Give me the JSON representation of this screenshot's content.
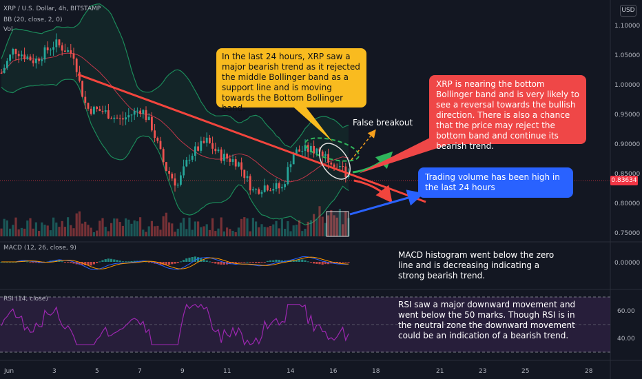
{
  "header": {
    "symbol": "XRP / U.S. Dollar, 4h, BITSTAMP",
    "bb": "BB (20, close, 2, 0)",
    "vol": "Vol",
    "currency": "USD"
  },
  "price_axis": {
    "ticks": [
      "1.10000",
      "1.05000",
      "1.00000",
      "0.95000",
      "0.90000",
      "0.85000",
      "0.80000",
      "0.75000"
    ],
    "current_price": "0.83634"
  },
  "macd": {
    "label": "MACD (12, 26, close, 9)",
    "tick": "0.00000"
  },
  "rsi": {
    "label": "RSI (14, close)",
    "ticks": [
      "60.00",
      "40.00"
    ]
  },
  "time_axis": {
    "labels": [
      "Jun",
      "3",
      "5",
      "7",
      "9",
      "11",
      "14",
      "16",
      "18",
      "21",
      "23",
      "25",
      "28"
    ]
  },
  "annotations": {
    "yellow": "In the last 24 hours, XRP saw a major bearish trend as it rejected the middle Bollinger band as a support line and is moving towards the Bottom Bollinger band.",
    "red": "XRP is nearing the bottom Bollinger band and is very likely to see a reversal towards the bullish direction. There is also a chance that the price may reject the bottom band and continue its bearish trend.",
    "false_breakout": "False breakout",
    "blue": "Trading volume has been high in the last 24 hours",
    "macd_note": "MACD histogram went below the zero line and is decreasing indicating a strong bearish trend.",
    "rsi_note": "RSI saw a major downward movement and went below the 50 marks. Though RSI is in the neutral zone the downward movement could be an indication of a bearish trend."
  },
  "colors": {
    "background": "#131722",
    "up": "#26a69a",
    "down": "#ef5350",
    "trendline": "#f2453d",
    "bb_band": "#1b8a5a",
    "bb_mid": "#c2374a",
    "rsi_line": "#9c27b0",
    "macd_line": "#2962ff",
    "signal_line": "#ff9800"
  },
  "chart_data": {
    "type": "candlestick",
    "interval": "4h",
    "price_range": [
      0.735,
      1.115
    ],
    "ohlc_sample": [
      {
        "date": "Jun 1",
        "open": 1.035,
        "high": 1.06,
        "low": 1.01,
        "close": 1.02
      },
      {
        "date": "Jun 2",
        "open": 1.02,
        "high": 1.07,
        "low": 1.0,
        "close": 1.05
      },
      {
        "date": "Jun 3",
        "open": 1.05,
        "high": 1.075,
        "low": 1.03,
        "close": 1.055
      },
      {
        "date": "Jun 4",
        "open": 1.055,
        "high": 1.07,
        "low": 1.035,
        "close": 1.045
      },
      {
        "date": "Jun 5",
        "open": 1.045,
        "high": 1.06,
        "low": 0.93,
        "close": 0.965
      },
      {
        "date": "Jun 6",
        "open": 0.965,
        "high": 0.99,
        "low": 0.93,
        "close": 0.955
      },
      {
        "date": "Jun 7",
        "open": 0.955,
        "high": 0.975,
        "low": 0.92,
        "close": 0.945
      },
      {
        "date": "Jun 8",
        "open": 0.945,
        "high": 0.95,
        "low": 0.83,
        "close": 0.85
      },
      {
        "date": "Jun 9",
        "open": 0.85,
        "high": 0.91,
        "low": 0.83,
        "close": 0.89
      },
      {
        "date": "Jun 10",
        "open": 0.89,
        "high": 0.93,
        "low": 0.87,
        "close": 0.88
      },
      {
        "date": "Jun 11",
        "open": 0.88,
        "high": 0.9,
        "low": 0.86,
        "close": 0.875
      },
      {
        "date": "Jun 12",
        "open": 0.875,
        "high": 0.88,
        "low": 0.805,
        "close": 0.815
      },
      {
        "date": "Jun 13",
        "open": 0.815,
        "high": 0.84,
        "low": 0.8,
        "close": 0.83
      },
      {
        "date": "Jun 14",
        "open": 0.83,
        "high": 0.9,
        "low": 0.82,
        "close": 0.885
      },
      {
        "date": "Jun 15",
        "open": 0.885,
        "high": 0.9,
        "low": 0.87,
        "close": 0.89
      },
      {
        "date": "Jun 16",
        "open": 0.89,
        "high": 0.895,
        "low": 0.83,
        "close": 0.836
      }
    ],
    "current_price": 0.83634,
    "rsi_levels": [
      70,
      50,
      30
    ],
    "rsi_range": [
      20,
      80
    ],
    "rsi_current": 40
  }
}
